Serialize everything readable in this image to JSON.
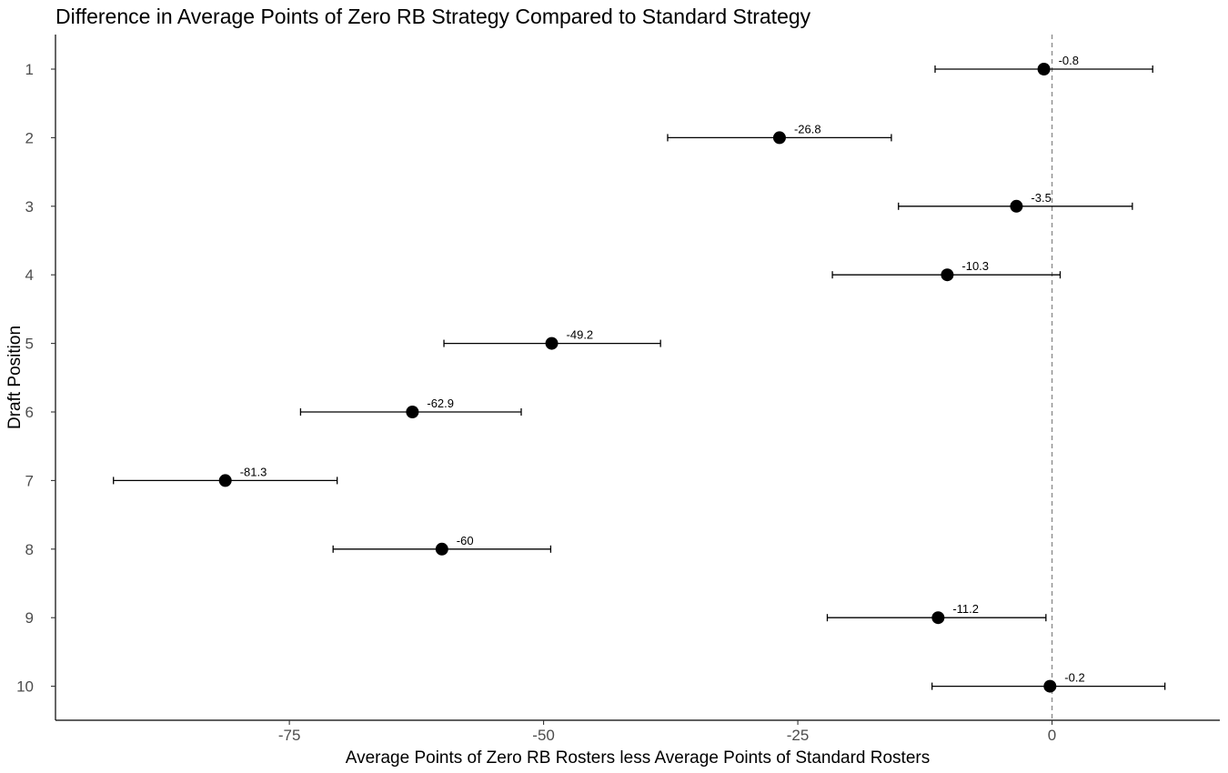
{
  "chart_data": {
    "type": "scatter",
    "title": "Difference in Average Points of Zero RB Strategy Compared to Standard Strategy",
    "xlabel": "Average Points of Zero RB Rosters less Average Points of Standard Rosters",
    "ylabel": "Draft Position",
    "xlim": [
      -98,
      16.5
    ],
    "ylim": [
      0.5,
      10.5
    ],
    "x_ticks": [
      -75,
      -50,
      -25,
      0
    ],
    "x_tick_labels": [
      "-75",
      "-50",
      "-25",
      "0"
    ],
    "y_categories": [
      "1",
      "2",
      "3",
      "4",
      "5",
      "6",
      "7",
      "8",
      "9",
      "10"
    ],
    "reference_line_x": 0,
    "grid": false,
    "series": [
      {
        "points": [
          {
            "draft_position": 1,
            "value": -0.8,
            "label": "-0.8",
            "ci_low": -11.5,
            "ci_high": 9.9
          },
          {
            "draft_position": 2,
            "value": -26.8,
            "label": "-26.8",
            "ci_low": -37.8,
            "ci_high": -15.8
          },
          {
            "draft_position": 3,
            "value": -3.5,
            "label": "-3.5",
            "ci_low": -15.1,
            "ci_high": 7.9
          },
          {
            "draft_position": 4,
            "value": -10.3,
            "label": "-10.3",
            "ci_low": -21.6,
            "ci_high": 0.8
          },
          {
            "draft_position": 5,
            "value": -49.2,
            "label": "-49.2",
            "ci_low": -59.8,
            "ci_high": -38.5
          },
          {
            "draft_position": 6,
            "value": -62.9,
            "label": "-62.9",
            "ci_low": -73.9,
            "ci_high": -52.2
          },
          {
            "draft_position": 7,
            "value": -81.3,
            "label": "-81.3",
            "ci_low": -92.3,
            "ci_high": -70.3
          },
          {
            "draft_position": 8,
            "value": -60,
            "label": "-60",
            "ci_low": -70.7,
            "ci_high": -49.3
          },
          {
            "draft_position": 9,
            "value": -11.2,
            "label": "-11.2",
            "ci_low": -22.1,
            "ci_high": -0.6
          },
          {
            "draft_position": 10,
            "value": -0.2,
            "label": "-0.2",
            "ci_low": -11.8,
            "ci_high": 11.1
          }
        ]
      }
    ]
  }
}
